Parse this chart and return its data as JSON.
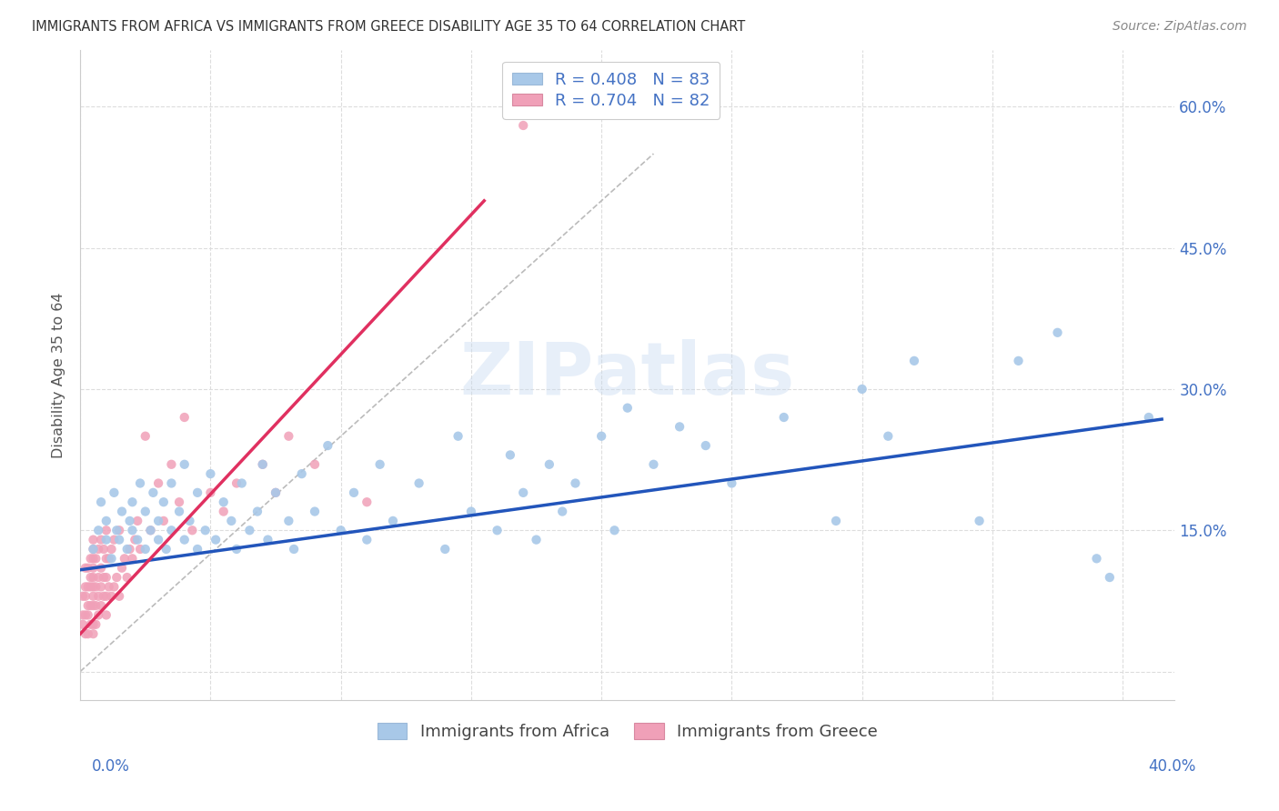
{
  "title": "IMMIGRANTS FROM AFRICA VS IMMIGRANTS FROM GREECE DISABILITY AGE 35 TO 64 CORRELATION CHART",
  "source": "Source: ZipAtlas.com",
  "ylabel": "Disability Age 35 to 64",
  "africa_color": "#a8c8e8",
  "africa_line_color": "#2255bb",
  "greece_color": "#f0a0b8",
  "greece_line_color": "#e03060",
  "africa_R": 0.408,
  "africa_N": 83,
  "greece_R": 0.704,
  "greece_N": 82,
  "legend_text_color": "#4472c4",
  "watermark_text": "ZIPatlas",
  "background_color": "#ffffff",
  "grid_color": "#dddddd",
  "title_color": "#333333",
  "source_color": "#888888",
  "ylabel_color": "#555555",
  "ytick_color": "#4472c4",
  "xlim": [
    0.0,
    0.42
  ],
  "ylim": [
    -0.03,
    0.66
  ],
  "ytick_vals": [
    0.0,
    0.15,
    0.3,
    0.45,
    0.6
  ],
  "ytick_labels": [
    "",
    "15.0%",
    "30.0%",
    "45.0%",
    "60.0%"
  ],
  "africa_line_x": [
    0.0,
    0.415
  ],
  "africa_line_y": [
    0.108,
    0.268
  ],
  "greece_line_x": [
    0.0,
    0.155
  ],
  "greece_line_y": [
    0.04,
    0.5
  ],
  "diag_line_x": [
    0.0,
    0.22
  ],
  "diag_line_y": [
    0.0,
    0.55
  ],
  "africa_x": [
    0.005,
    0.007,
    0.008,
    0.01,
    0.01,
    0.012,
    0.013,
    0.014,
    0.015,
    0.016,
    0.018,
    0.019,
    0.02,
    0.02,
    0.022,
    0.023,
    0.025,
    0.025,
    0.027,
    0.028,
    0.03,
    0.03,
    0.032,
    0.033,
    0.035,
    0.035,
    0.038,
    0.04,
    0.04,
    0.042,
    0.045,
    0.045,
    0.048,
    0.05,
    0.052,
    0.055,
    0.058,
    0.06,
    0.062,
    0.065,
    0.068,
    0.07,
    0.072,
    0.075,
    0.08,
    0.082,
    0.085,
    0.09,
    0.095,
    0.1,
    0.105,
    0.11,
    0.115,
    0.12,
    0.13,
    0.14,
    0.145,
    0.15,
    0.16,
    0.165,
    0.17,
    0.175,
    0.18,
    0.185,
    0.19,
    0.2,
    0.205,
    0.21,
    0.22,
    0.23,
    0.24,
    0.25,
    0.27,
    0.29,
    0.3,
    0.31,
    0.32,
    0.345,
    0.36,
    0.375,
    0.39,
    0.395,
    0.41
  ],
  "africa_y": [
    0.13,
    0.15,
    0.18,
    0.14,
    0.16,
    0.12,
    0.19,
    0.15,
    0.14,
    0.17,
    0.13,
    0.16,
    0.15,
    0.18,
    0.14,
    0.2,
    0.13,
    0.17,
    0.15,
    0.19,
    0.14,
    0.16,
    0.18,
    0.13,
    0.15,
    0.2,
    0.17,
    0.14,
    0.22,
    0.16,
    0.13,
    0.19,
    0.15,
    0.21,
    0.14,
    0.18,
    0.16,
    0.13,
    0.2,
    0.15,
    0.17,
    0.22,
    0.14,
    0.19,
    0.16,
    0.13,
    0.21,
    0.17,
    0.24,
    0.15,
    0.19,
    0.14,
    0.22,
    0.16,
    0.2,
    0.13,
    0.25,
    0.17,
    0.15,
    0.23,
    0.19,
    0.14,
    0.22,
    0.17,
    0.2,
    0.25,
    0.15,
    0.28,
    0.22,
    0.26,
    0.24,
    0.2,
    0.27,
    0.16,
    0.3,
    0.25,
    0.33,
    0.16,
    0.33,
    0.36,
    0.12,
    0.1,
    0.27
  ],
  "greece_x": [
    0.001,
    0.001,
    0.001,
    0.002,
    0.002,
    0.002,
    0.002,
    0.002,
    0.003,
    0.003,
    0.003,
    0.003,
    0.003,
    0.004,
    0.004,
    0.004,
    0.004,
    0.004,
    0.005,
    0.005,
    0.005,
    0.005,
    0.005,
    0.005,
    0.005,
    0.005,
    0.005,
    0.005,
    0.006,
    0.006,
    0.006,
    0.006,
    0.007,
    0.007,
    0.007,
    0.007,
    0.008,
    0.008,
    0.008,
    0.008,
    0.009,
    0.009,
    0.009,
    0.01,
    0.01,
    0.01,
    0.01,
    0.01,
    0.011,
    0.011,
    0.012,
    0.012,
    0.013,
    0.013,
    0.014,
    0.015,
    0.015,
    0.016,
    0.017,
    0.018,
    0.019,
    0.02,
    0.021,
    0.022,
    0.023,
    0.025,
    0.027,
    0.03,
    0.032,
    0.035,
    0.038,
    0.04,
    0.043,
    0.05,
    0.055,
    0.06,
    0.07,
    0.075,
    0.08,
    0.09,
    0.11,
    0.17
  ],
  "greece_y": [
    0.05,
    0.06,
    0.08,
    0.04,
    0.06,
    0.08,
    0.09,
    0.11,
    0.04,
    0.06,
    0.07,
    0.09,
    0.11,
    0.05,
    0.07,
    0.09,
    0.1,
    0.12,
    0.04,
    0.05,
    0.07,
    0.08,
    0.09,
    0.1,
    0.11,
    0.12,
    0.13,
    0.14,
    0.05,
    0.07,
    0.09,
    0.12,
    0.06,
    0.08,
    0.1,
    0.13,
    0.07,
    0.09,
    0.11,
    0.14,
    0.08,
    0.1,
    0.13,
    0.06,
    0.08,
    0.1,
    0.12,
    0.15,
    0.09,
    0.12,
    0.08,
    0.13,
    0.09,
    0.14,
    0.1,
    0.08,
    0.15,
    0.11,
    0.12,
    0.1,
    0.13,
    0.12,
    0.14,
    0.16,
    0.13,
    0.25,
    0.15,
    0.2,
    0.16,
    0.22,
    0.18,
    0.27,
    0.15,
    0.19,
    0.17,
    0.2,
    0.22,
    0.19,
    0.25,
    0.22,
    0.18,
    0.58
  ]
}
